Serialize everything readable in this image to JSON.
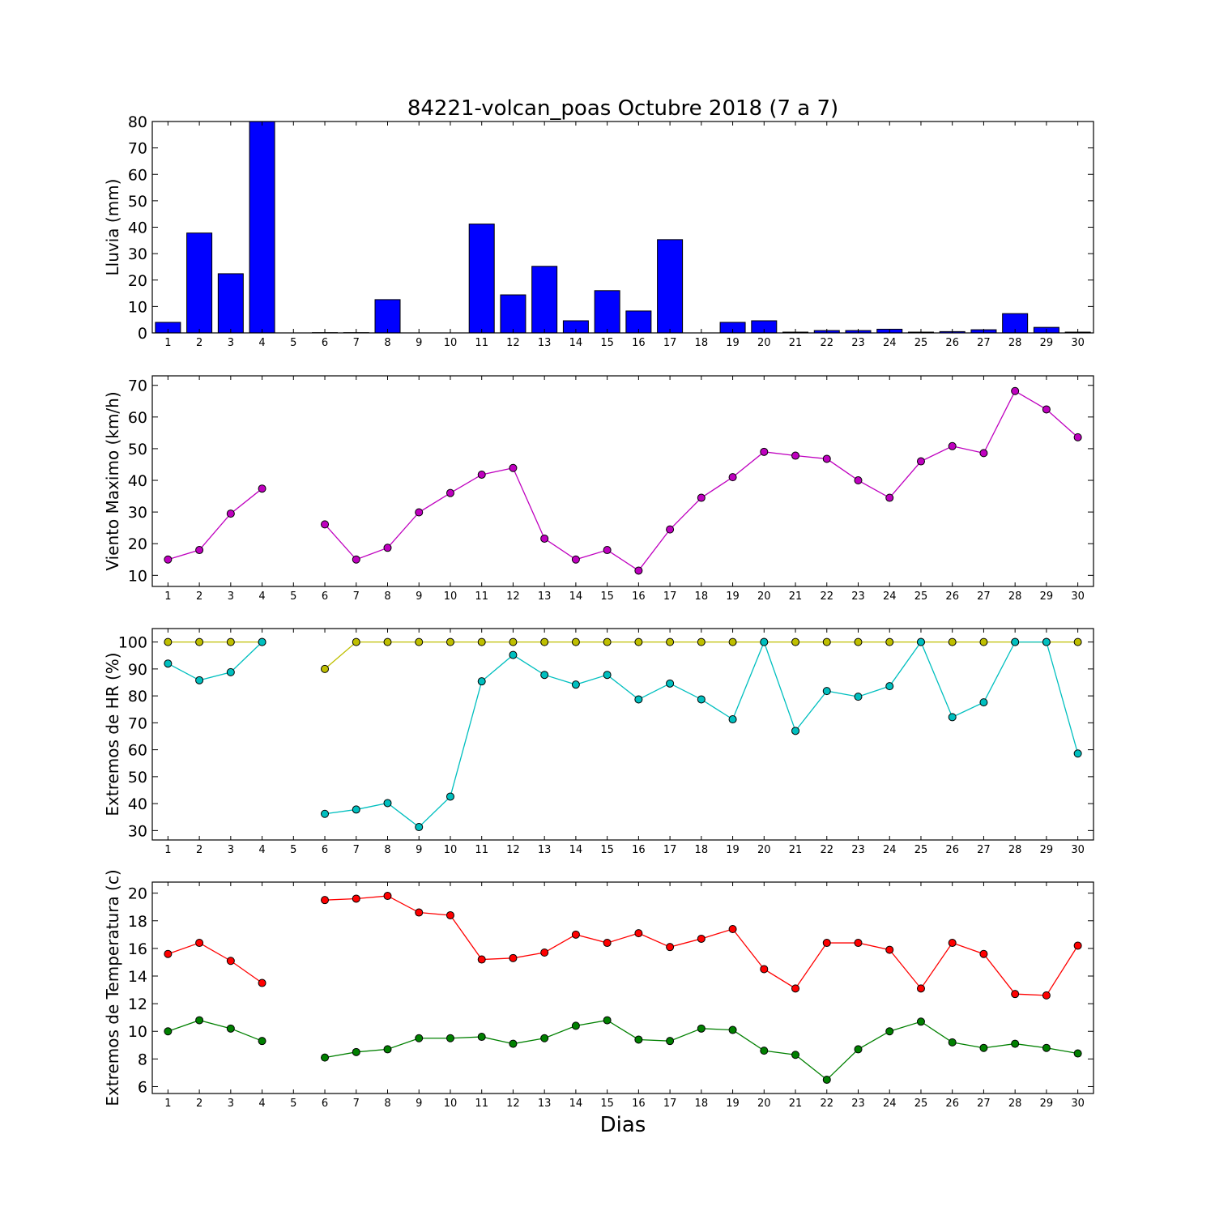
{
  "chart_data": {
    "title": "84221-volcan_poas Octubre 2018  (7 a 7)",
    "xlabel": "Dias",
    "days": [
      1,
      2,
      3,
      4,
      5,
      6,
      7,
      8,
      9,
      10,
      11,
      12,
      13,
      14,
      15,
      16,
      17,
      18,
      19,
      20,
      21,
      22,
      23,
      24,
      25,
      26,
      27,
      28,
      29,
      30
    ],
    "panels": [
      {
        "id": "lluvia",
        "type": "bar",
        "ylabel": "Lluvia (mm)",
        "ylim": [
          0,
          80
        ],
        "yticks": [
          0,
          10,
          20,
          30,
          40,
          50,
          60,
          70,
          80
        ],
        "series": [
          {
            "color": "#0000ff",
            "values": [
              4,
              37.8,
              22.4,
              80,
              0,
              0.1,
              0.1,
              12.6,
              0,
              0,
              41.2,
              14.4,
              25.2,
              4.6,
              16,
              8.3,
              35.3,
              0,
              4,
              4.6,
              0.3,
              0.9,
              0.9,
              1.4,
              0.3,
              0.5,
              1.2,
              7.3,
              2.1,
              0.3
            ]
          }
        ]
      },
      {
        "id": "viento",
        "type": "line",
        "ylabel": "Viento Maximo (km/h)",
        "ylim": [
          6.5,
          73
        ],
        "yticks": [
          10,
          20,
          30,
          40,
          50,
          60,
          70
        ],
        "series": [
          {
            "color": "#bf00bf",
            "values": [
              15,
              18,
              29.5,
              37.4,
              null,
              26.1,
              15,
              18.7,
              29.9,
              36,
              41.8,
              43.9,
              21.6,
              15,
              18,
              11.5,
              24.5,
              34.5,
              41,
              49,
              47.8,
              46.8,
              40,
              34.5,
              46,
              50.8,
              48.6,
              68.2,
              62.4,
              53.6
            ]
          }
        ]
      },
      {
        "id": "humedad",
        "type": "line",
        "ylabel": "Extremos de HR (%)",
        "ylim": [
          26.5,
          105
        ],
        "yticks": [
          30,
          40,
          50,
          60,
          70,
          80,
          90,
          100
        ],
        "series": [
          {
            "color": "#bfbf00",
            "values": [
              100,
              100,
              100,
              100,
              null,
              90,
              100,
              100,
              100,
              100,
              100,
              100,
              100,
              100,
              100,
              100,
              100,
              100,
              100,
              100,
              100,
              100,
              100,
              100,
              100,
              100,
              100,
              100,
              100,
              100
            ]
          },
          {
            "color": "#00bfbf",
            "values": [
              92,
              85.8,
              88.8,
              100,
              null,
              36.2,
              37.8,
              40.2,
              31.3,
              42.6,
              85.4,
              95.2,
              87.8,
              84.2,
              87.8,
              78.7,
              84.6,
              78.7,
              71.3,
              100,
              67,
              81.8,
              79.7,
              83.6,
              100,
              72.1,
              77.6,
              100,
              100,
              58.6
            ]
          }
        ]
      },
      {
        "id": "temperatura",
        "type": "line",
        "ylabel": "Extremos de Temperatura (c)",
        "ylim": [
          5.5,
          20.8
        ],
        "yticks": [
          6,
          8,
          10,
          12,
          14,
          16,
          18,
          20
        ],
        "series": [
          {
            "color": "#ff0000",
            "values": [
              15.6,
              16.4,
              15.1,
              13.5,
              null,
              19.5,
              19.6,
              19.8,
              18.6,
              18.4,
              15.2,
              15.3,
              15.7,
              17,
              16.4,
              17.1,
              16.1,
              16.7,
              17.4,
              14.5,
              13.1,
              16.4,
              16.4,
              15.9,
              13.1,
              16.4,
              15.6,
              12.7,
              12.6,
              16.2
            ]
          },
          {
            "color": "#008000",
            "values": [
              10,
              10.8,
              10.2,
              9.3,
              null,
              8.1,
              8.5,
              8.7,
              9.5,
              9.5,
              9.6,
              9.1,
              9.5,
              10.4,
              10.8,
              9.4,
              9.3,
              10.2,
              10.1,
              8.6,
              8.3,
              6.5,
              8.7,
              10,
              10.7,
              9.2,
              8.8,
              9.1,
              8.8,
              8.4
            ]
          }
        ]
      }
    ]
  }
}
